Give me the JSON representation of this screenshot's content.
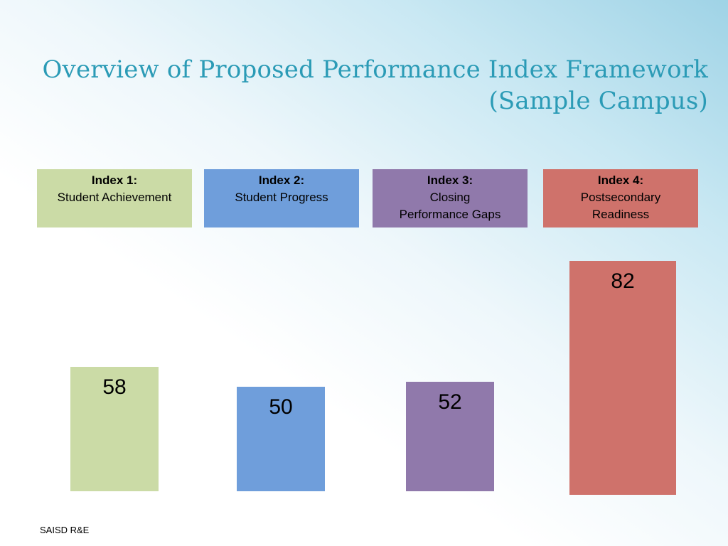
{
  "slide": {
    "title_line1": "Overview of Proposed Performance Index Framework",
    "title_line2": "(Sample Campus)",
    "footer": "SAISD R&E"
  },
  "indexes": [
    {
      "head": "Index 1:",
      "sub_line1": "Student Achievement",
      "sub_line2": "",
      "color": "#cbdba6"
    },
    {
      "head": "Index 2:",
      "sub_line1": "Student Progress",
      "sub_line2": "",
      "color": "#6f9edb"
    },
    {
      "head": "Index 3:",
      "sub_line1": "Closing",
      "sub_line2": "Performance Gaps",
      "color": "#9079ab"
    },
    {
      "head": "Index 4:",
      "sub_line1": "Postsecondary",
      "sub_line2": "Readiness",
      "color": "#cf726b"
    }
  ],
  "chart_data": {
    "type": "bar",
    "categories": [
      "Index 1: Student Achievement",
      "Index 2: Student Progress",
      "Index 3: Closing Performance Gaps",
      "Index 4: Postsecondary Readiness"
    ],
    "values": [
      58,
      50,
      52,
      82
    ],
    "data_labels": [
      "58",
      "50",
      "52",
      "82"
    ],
    "colors": [
      "#cbdba6",
      "#6f9edb",
      "#9079ab",
      "#cf726b"
    ],
    "grid": false,
    "legend": "none"
  }
}
